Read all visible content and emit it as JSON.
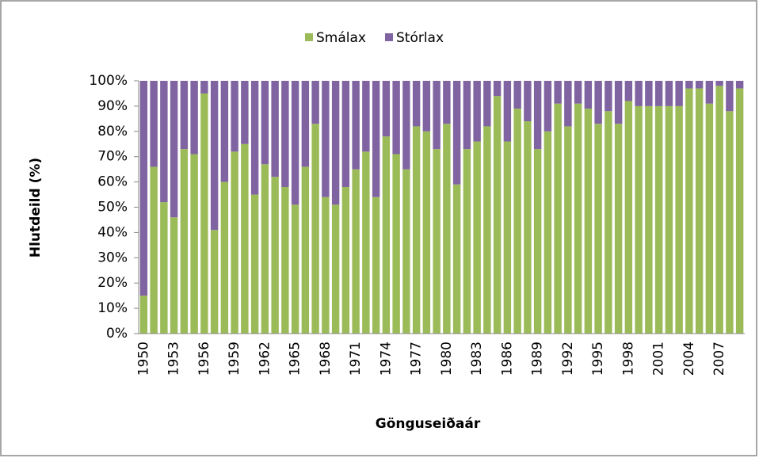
{
  "chart_data": {
    "type": "stacked_bar",
    "categories": [
      "1950",
      null,
      null,
      "1953",
      null,
      null,
      "1956",
      null,
      null,
      "1959",
      null,
      null,
      "1962",
      null,
      null,
      "1965",
      null,
      null,
      "1968",
      null,
      null,
      "1971",
      null,
      null,
      "1974",
      null,
      null,
      "1977",
      null,
      null,
      "1980",
      null,
      null,
      "1983",
      null,
      null,
      "1986",
      null,
      null,
      "1989",
      null,
      null,
      "1992",
      null,
      null,
      "1995",
      null,
      null,
      "1998",
      null,
      null,
      "2001",
      null,
      null,
      "2004",
      null,
      null,
      "2007",
      null,
      null
    ],
    "series": [
      {
        "name": "Smálax",
        "color": "#9bbb59",
        "values": [
          15,
          66,
          52,
          46,
          73,
          71,
          95,
          41,
          60,
          72,
          75,
          55,
          67,
          62,
          58,
          51,
          66,
          83,
          54,
          51,
          58,
          65,
          72,
          54,
          78,
          71,
          65,
          82,
          80,
          73,
          83,
          59,
          73,
          76,
          82,
          94,
          76,
          89,
          84,
          73,
          80,
          91,
          82,
          91,
          89,
          83,
          88,
          83,
          92,
          90,
          90,
          90,
          90,
          90,
          97,
          97,
          91,
          98,
          88,
          97
        ]
      },
      {
        "name": "Stórlax",
        "color": "#8064a2",
        "values": [
          85,
          34,
          48,
          54,
          27,
          29,
          5,
          59,
          40,
          28,
          25,
          45,
          33,
          38,
          42,
          49,
          34,
          17,
          46,
          49,
          42,
          35,
          28,
          46,
          22,
          29,
          35,
          18,
          20,
          27,
          17,
          41,
          27,
          24,
          18,
          6,
          24,
          11,
          16,
          27,
          20,
          9,
          18,
          9,
          11,
          17,
          12,
          17,
          8,
          10,
          10,
          10,
          10,
          10,
          3,
          3,
          9,
          2,
          12,
          3
        ]
      }
    ],
    "ylabel": "Hlutdeild (%)",
    "xlabel": "Gönguseiðaár",
    "ylim": [
      0,
      100
    ],
    "yticks": [
      {
        "value": 0,
        "label": "0%"
      },
      {
        "value": 10,
        "label": "10%"
      },
      {
        "value": 20,
        "label": "20%"
      },
      {
        "value": 30,
        "label": "30%"
      },
      {
        "value": 40,
        "label": "40%"
      },
      {
        "value": 50,
        "label": "50%"
      },
      {
        "value": 60,
        "label": "60%"
      },
      {
        "value": 70,
        "label": "70%"
      },
      {
        "value": 80,
        "label": "80%"
      },
      {
        "value": 90,
        "label": "90%"
      },
      {
        "value": 100,
        "label": "100%"
      }
    ],
    "legend": "top",
    "grid": false
  }
}
